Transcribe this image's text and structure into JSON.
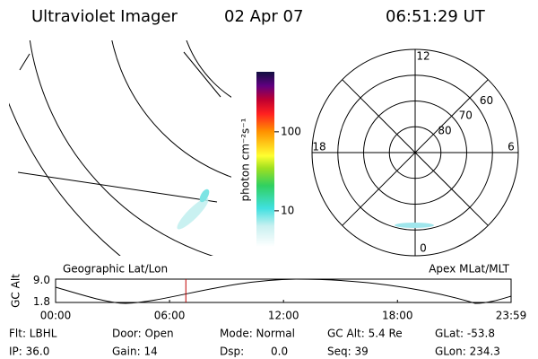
{
  "header": {
    "instrument": "Ultraviolet Imager",
    "date": "02 Apr 07",
    "time": "06:51:29 UT"
  },
  "colorbar": {
    "label": "photon cm⁻²s⁻¹",
    "log": true,
    "lim": [
      3.5,
      575
    ],
    "ticks": [
      10,
      100
    ]
  },
  "polar": {
    "lat_lim": [
      50,
      90
    ],
    "lat_labels": [
      60,
      70,
      80
    ],
    "mlt_labels": [
      12,
      6,
      0,
      18
    ]
  },
  "panels": {
    "left": "Geographic Lat/Lon",
    "right": "Apex MLat/MLT"
  },
  "timeline": {
    "ylabel": "GC Alt",
    "xlim": [
      0,
      23.983
    ],
    "xticks": [
      {
        "value": 0,
        "label": "00:00"
      },
      {
        "value": 6,
        "label": "06:00"
      },
      {
        "value": 12,
        "label": "12:00"
      },
      {
        "value": 18,
        "label": "18:00"
      },
      {
        "value": 23.983,
        "label": "23:59"
      }
    ],
    "ylim": [
      1.6,
      9.4
    ],
    "yticks": [
      {
        "value": 9.0,
        "label": "9.0"
      },
      {
        "value": 1.8,
        "label": "1.8"
      }
    ]
  },
  "info": [
    [
      "Flt: LBHL",
      "Door: Open",
      "Mode: Normal",
      "GC Alt: 5.4 Re",
      "GLat: -53.8"
    ],
    [
      "IP: 36.0",
      "Gain: 14",
      "Dsp:",
      "Seq: 39",
      "GLon: 234.3"
    ]
  ],
  "info_extra": "0.0"
}
